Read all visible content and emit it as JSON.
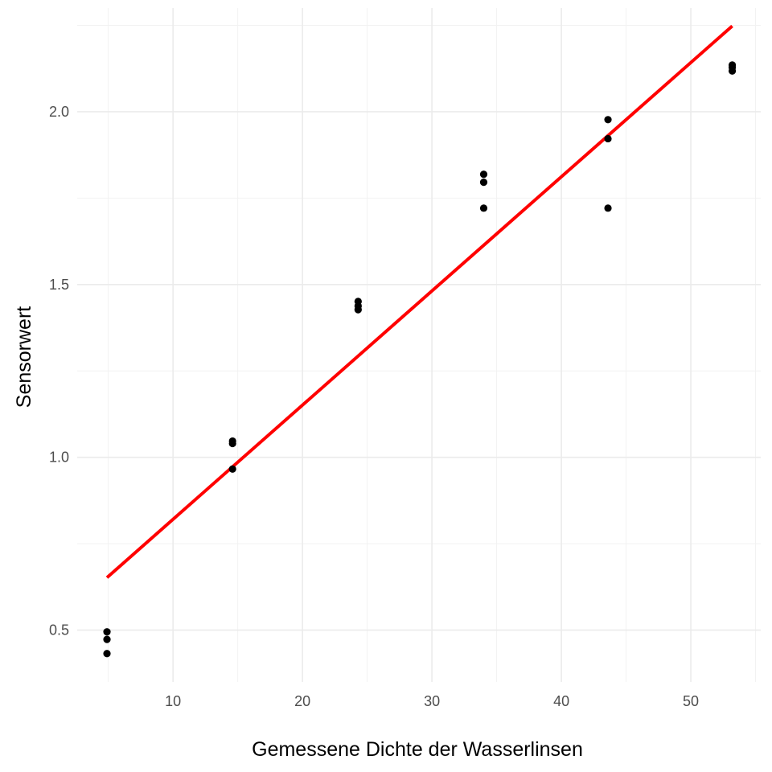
{
  "chart_data": {
    "type": "scatter",
    "title": "",
    "xlabel": "Gemessene Dichte der Wasserlinsen",
    "ylabel": "Sensorwert",
    "xlim": [
      2.6,
      55.4
    ],
    "ylim": [
      0.35,
      2.3
    ],
    "x_ticks": [
      10,
      20,
      30,
      40,
      50
    ],
    "x_tick_labels": [
      "10",
      "20",
      "30",
      "40",
      "50"
    ],
    "y_ticks": [
      0.5,
      1.0,
      1.5,
      2.0
    ],
    "y_tick_labels": [
      "0.5",
      "1.0",
      "1.5",
      "2.0"
    ],
    "grid": true,
    "legend": "none",
    "series": [
      {
        "type": "scatter",
        "color": "#000000",
        "points": [
          {
            "x": 4.9,
            "y": 0.495
          },
          {
            "x": 4.9,
            "y": 0.473
          },
          {
            "x": 4.9,
            "y": 0.432
          },
          {
            "x": 14.6,
            "y": 1.047
          },
          {
            "x": 14.6,
            "y": 1.04
          },
          {
            "x": 14.6,
            "y": 0.966
          },
          {
            "x": 24.3,
            "y": 1.451
          },
          {
            "x": 24.3,
            "y": 1.438
          },
          {
            "x": 24.3,
            "y": 1.427
          },
          {
            "x": 34.0,
            "y": 1.819
          },
          {
            "x": 34.0,
            "y": 1.796
          },
          {
            "x": 34.0,
            "y": 1.721
          },
          {
            "x": 43.6,
            "y": 1.977
          },
          {
            "x": 43.6,
            "y": 1.922
          },
          {
            "x": 43.6,
            "y": 1.721
          },
          {
            "x": 53.2,
            "y": 2.135
          },
          {
            "x": 53.2,
            "y": 2.128
          },
          {
            "x": 53.2,
            "y": 2.118
          }
        ]
      },
      {
        "type": "line",
        "color": "#ff0000",
        "points": [
          {
            "x": 4.9,
            "y": 0.652
          },
          {
            "x": 53.2,
            "y": 2.248
          }
        ]
      }
    ]
  }
}
